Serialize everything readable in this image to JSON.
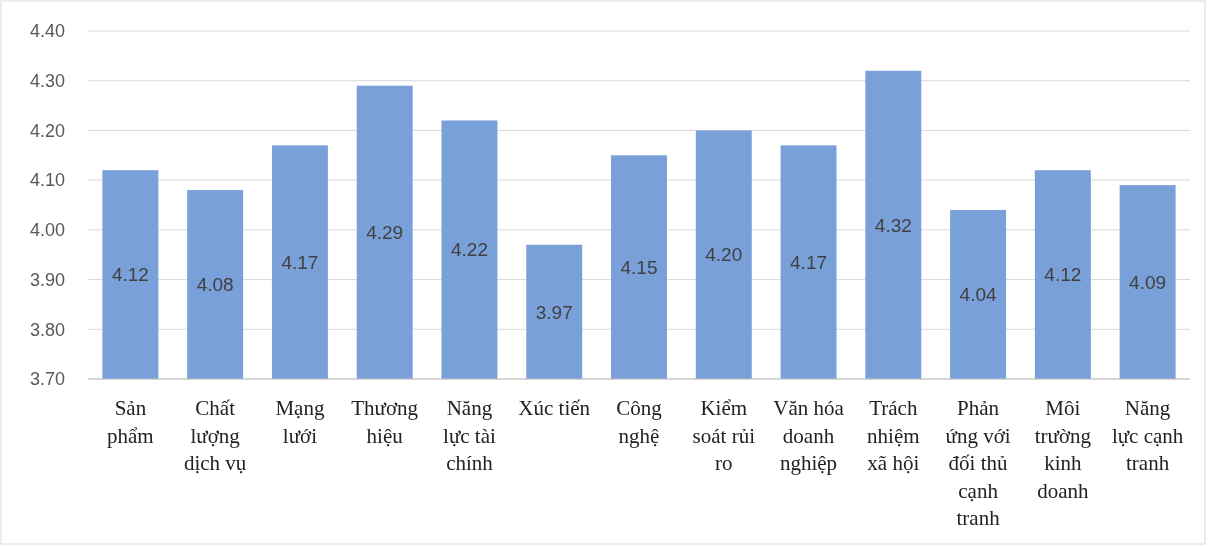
{
  "chart_data": {
    "type": "bar",
    "categories": [
      "Sản phẩm",
      "Chất lượng dịch vụ",
      "Mạng lưới",
      "Thương hiệu",
      "Năng lực tài chính",
      "Xúc tiến",
      "Công nghệ",
      "Kiểm soát rủi ro",
      "Văn hóa doanh nghiệp",
      "Trách nhiệm xã hội",
      "Phản ứng với đối thủ cạnh tranh",
      "Môi trường kinh doanh",
      "Năng lực cạnh tranh"
    ],
    "values": [
      4.12,
      4.08,
      4.17,
      4.29,
      4.22,
      3.97,
      4.15,
      4.2,
      4.17,
      4.32,
      4.04,
      4.12,
      4.09
    ],
    "value_labels": [
      "4.12",
      "4.08",
      "4.17",
      "4.29",
      "4.22",
      "3.97",
      "4.15",
      "4.20",
      "4.17",
      "4.32",
      "4.04",
      "4.12",
      "4.09"
    ],
    "color": "#7aa0d9",
    "ylim": [
      3.7,
      4.4
    ],
    "yticks": [
      {
        "value": 3.7,
        "label": "3.70"
      },
      {
        "value": 3.8,
        "label": "3.80"
      },
      {
        "value": 3.9,
        "label": "3.90"
      },
      {
        "value": 4.0,
        "label": "4.00"
      },
      {
        "value": 4.1,
        "label": "4.10"
      },
      {
        "value": 4.2,
        "label": "4.20"
      },
      {
        "value": 4.3,
        "label": "4.30"
      },
      {
        "value": 4.4,
        "label": "4.40"
      }
    ],
    "grid": "y"
  }
}
